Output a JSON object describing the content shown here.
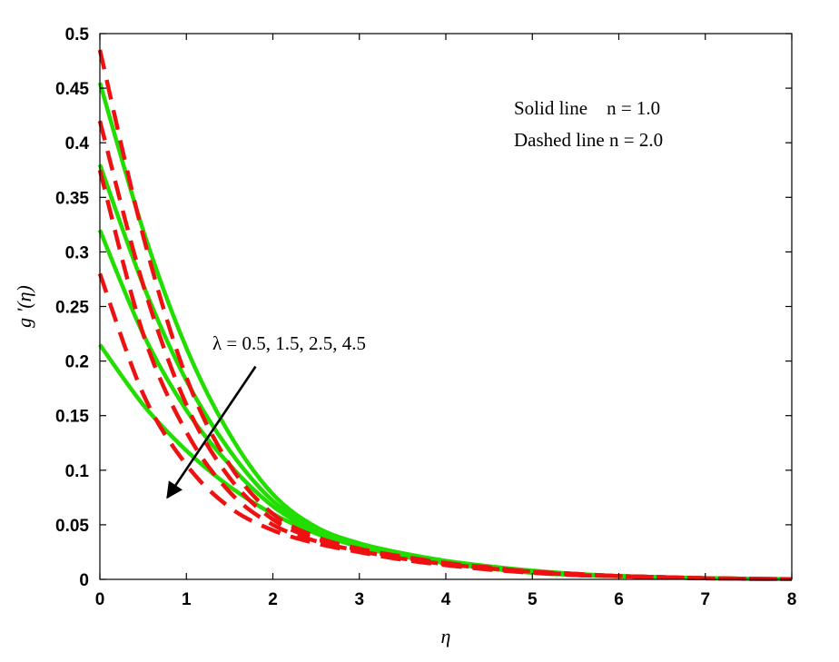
{
  "chart_data": {
    "type": "line",
    "title": "",
    "xlabel": "η",
    "ylabel": "g '(η)",
    "xlim": [
      0,
      8
    ],
    "ylim": [
      0,
      0.5
    ],
    "grid": false,
    "xticks": [
      0,
      1,
      2,
      3,
      4,
      5,
      6,
      7,
      8
    ],
    "yticks": [
      0,
      0.05,
      0.1,
      0.15,
      0.2,
      0.25,
      0.3,
      0.35,
      0.4,
      0.45,
      0.5
    ],
    "xtick_labels": [
      "0",
      "1",
      "2",
      "3",
      "4",
      "5",
      "6",
      "7",
      "8"
    ],
    "ytick_labels": [
      "0",
      "0.05",
      "0.1",
      "0.15",
      "0.2",
      "0.25",
      "0.3",
      "0.35",
      "0.4",
      "0.45",
      "0.5"
    ],
    "x": [
      0,
      0.5,
      1,
      1.5,
      2,
      2.5,
      3,
      3.5,
      4,
      4.5,
      5,
      5.5,
      6,
      6.5,
      7,
      7.5,
      8
    ],
    "series": [
      {
        "style": "solid",
        "lambda": "0.5",
        "color": "#22dd00",
        "values": [
          0.455,
          0.32,
          0.212,
          0.133,
          0.078,
          0.048,
          0.033,
          0.024,
          0.017,
          0.012,
          0.008,
          0.005,
          0.003,
          0.002,
          0.001,
          0.0005,
          0.0002
        ]
      },
      {
        "style": "solid",
        "lambda": "1.5",
        "color": "#22dd00",
        "values": [
          0.38,
          0.27,
          0.182,
          0.118,
          0.072,
          0.046,
          0.032,
          0.023,
          0.016,
          0.011,
          0.007,
          0.005,
          0.003,
          0.002,
          0.001,
          0.0005,
          0.0002
        ]
      },
      {
        "style": "solid",
        "lambda": "2.5",
        "color": "#22dd00",
        "values": [
          0.32,
          0.225,
          0.155,
          0.105,
          0.067,
          0.044,
          0.031,
          0.022,
          0.015,
          0.01,
          0.007,
          0.004,
          0.003,
          0.002,
          0.001,
          0.0005,
          0.0002
        ]
      },
      {
        "style": "solid",
        "lambda": "4.5",
        "color": "#22dd00",
        "values": [
          0.215,
          0.16,
          0.118,
          0.085,
          0.06,
          0.042,
          0.03,
          0.021,
          0.015,
          0.01,
          0.006,
          0.004,
          0.003,
          0.002,
          0.001,
          0.0005,
          0.0002
        ]
      },
      {
        "style": "dashed",
        "lambda": "0.5",
        "color": "#ee1111",
        "values": [
          0.485,
          0.315,
          0.185,
          0.105,
          0.06,
          0.039,
          0.028,
          0.021,
          0.015,
          0.011,
          0.007,
          0.005,
          0.003,
          0.002,
          0.001,
          0.0005,
          0.0002
        ]
      },
      {
        "style": "dashed",
        "lambda": "1.5",
        "color": "#ee1111",
        "values": [
          0.42,
          0.27,
          0.16,
          0.093,
          0.055,
          0.037,
          0.027,
          0.02,
          0.014,
          0.01,
          0.007,
          0.005,
          0.003,
          0.002,
          0.001,
          0.0005,
          0.0002
        ]
      },
      {
        "style": "dashed",
        "lambda": "2.5",
        "color": "#ee1111",
        "values": [
          0.375,
          0.225,
          0.135,
          0.08,
          0.05,
          0.035,
          0.026,
          0.019,
          0.014,
          0.01,
          0.007,
          0.004,
          0.003,
          0.002,
          0.001,
          0.0005,
          0.0002
        ]
      },
      {
        "style": "dashed",
        "lambda": "4.5",
        "color": "#ee1111",
        "values": [
          0.28,
          0.17,
          0.105,
          0.066,
          0.045,
          0.033,
          0.025,
          0.018,
          0.013,
          0.009,
          0.006,
          0.004,
          0.003,
          0.002,
          0.001,
          0.0005,
          0.0002
        ]
      }
    ],
    "legend_text": [
      "Solid line    n = 1.0",
      "Dashed line n = 2.0"
    ],
    "legend_placement": "top-right",
    "annotation": {
      "text": "λ = 0.5, 1.5, 2.5, 4.5",
      "arrow_from": [
        1.8,
        0.195
      ],
      "arrow_to": [
        0.78,
        0.075
      ]
    }
  }
}
